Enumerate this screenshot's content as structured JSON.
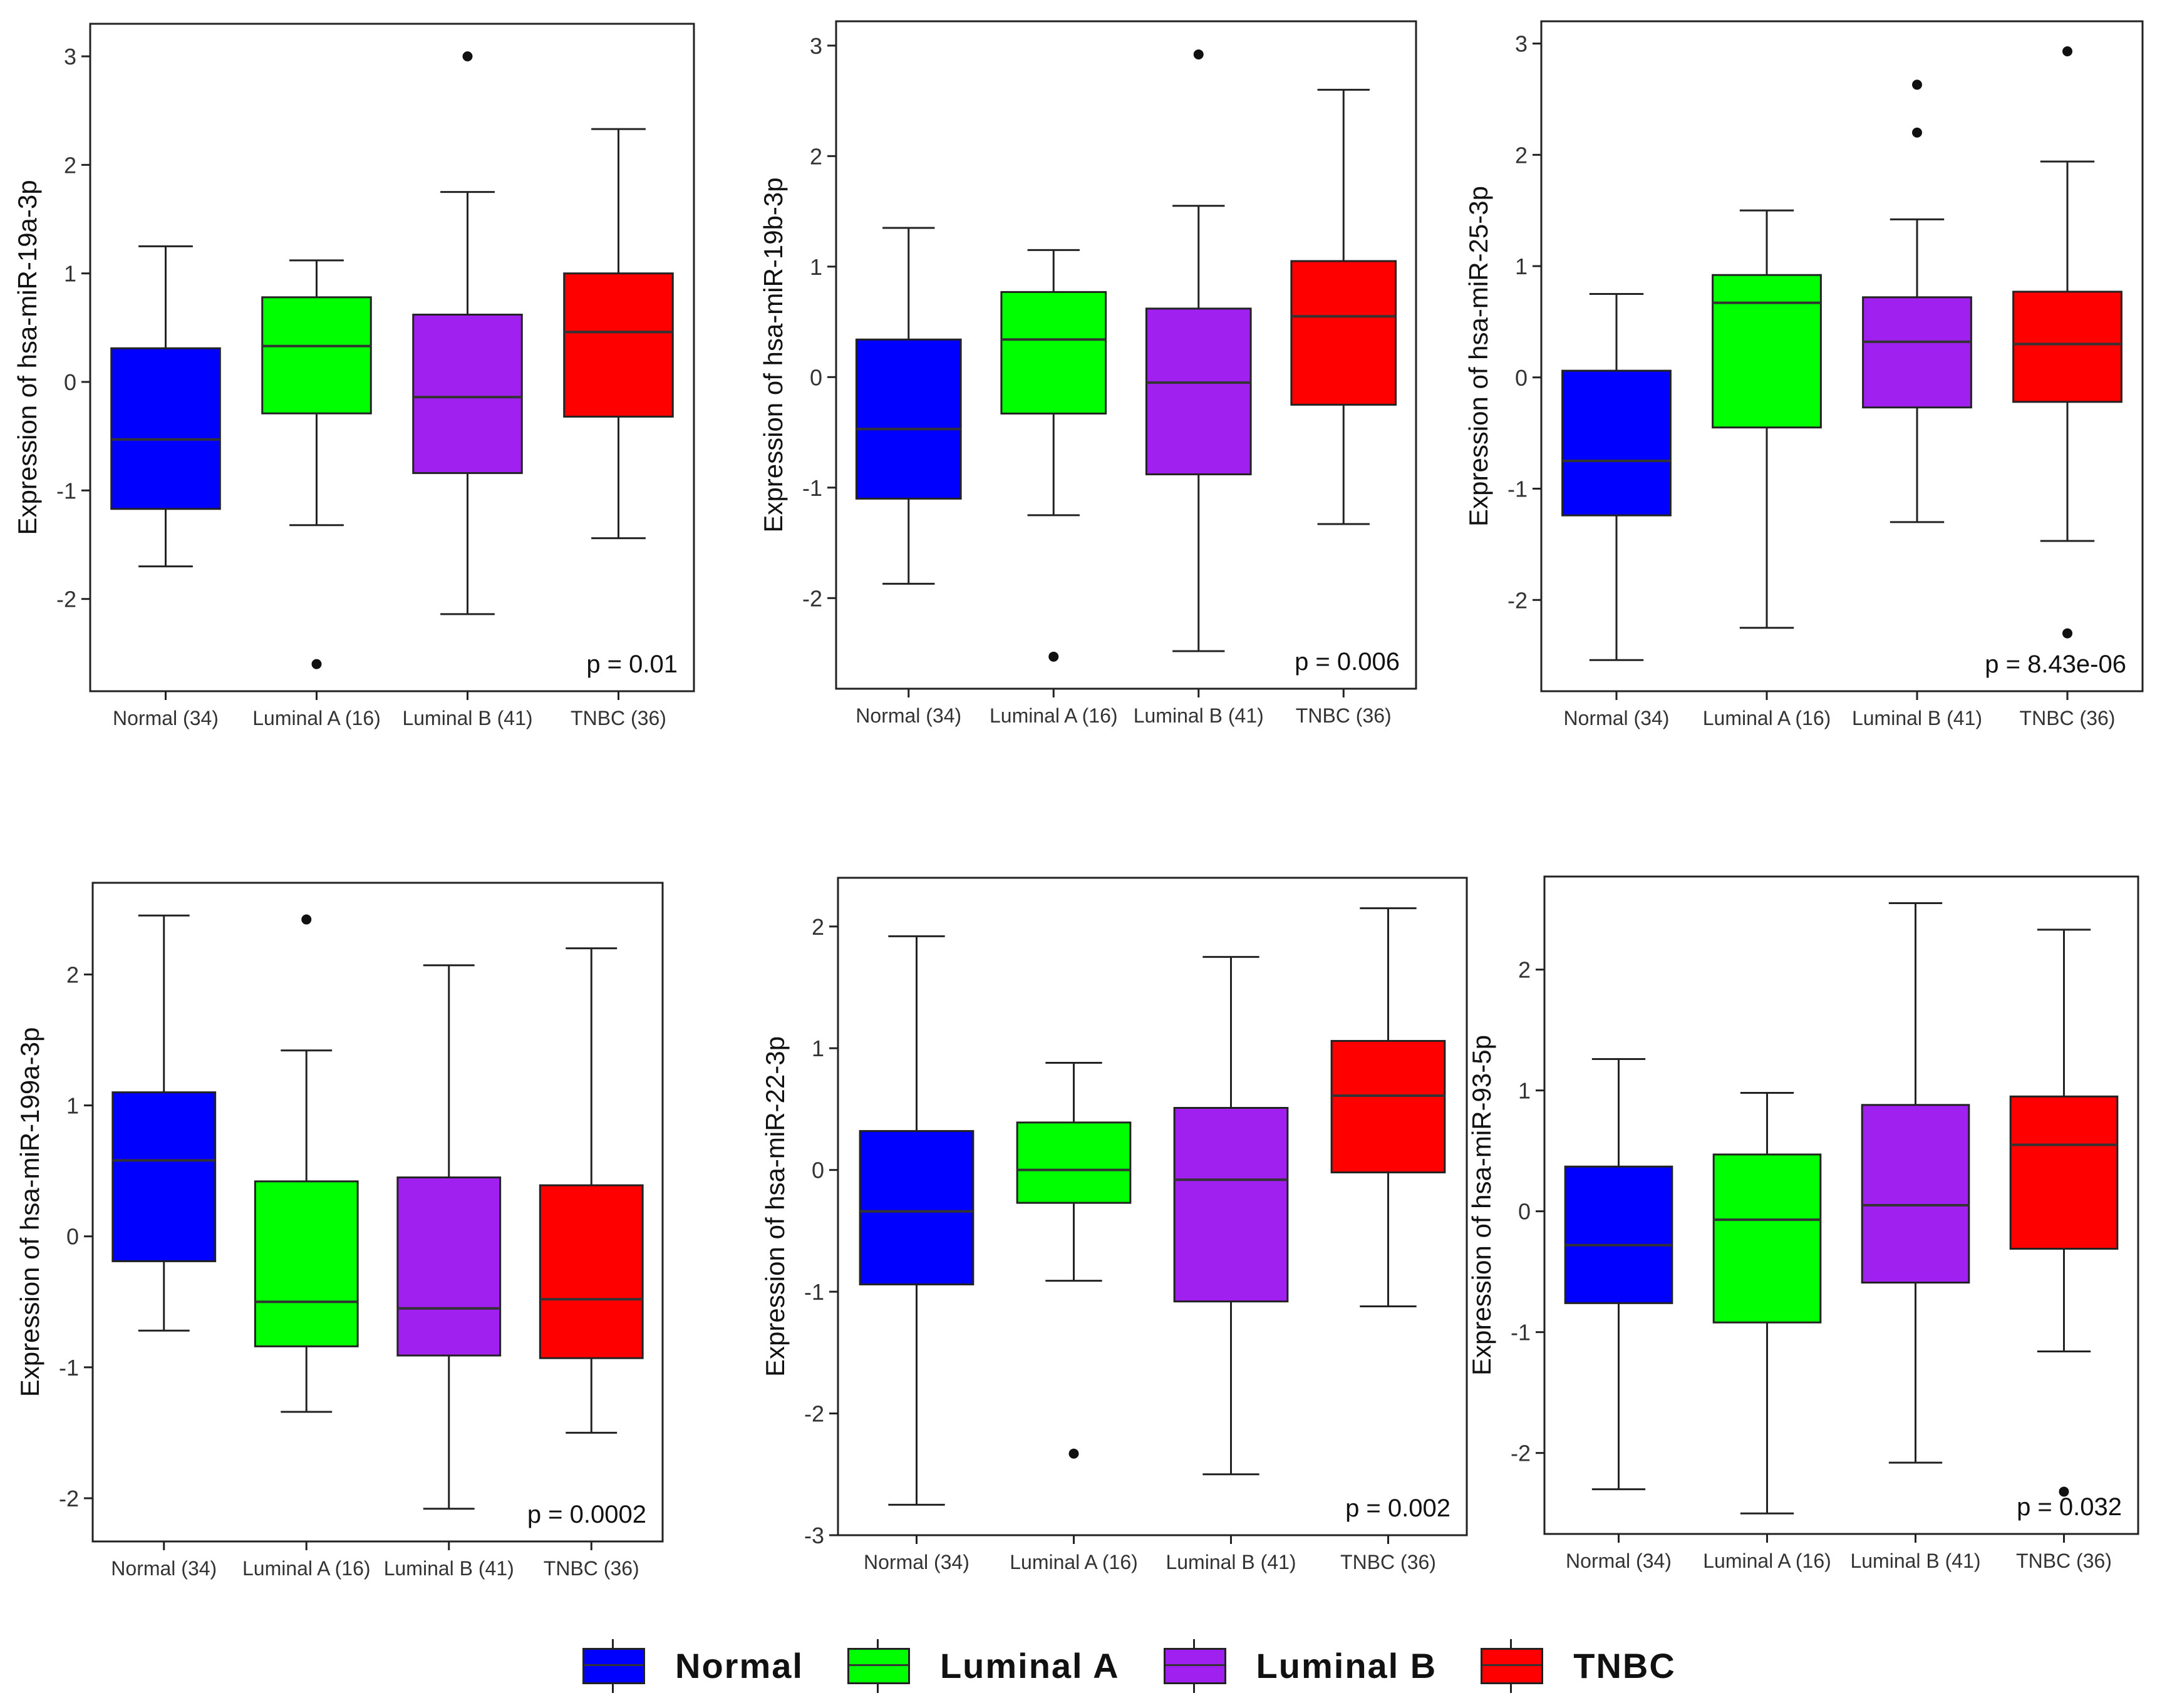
{
  "legend": {
    "items": [
      {
        "label": "Normal",
        "color": "#0000ff"
      },
      {
        "label": "Luminal A",
        "color": "#00ff00"
      },
      {
        "label": "Luminal B",
        "color": "#a020f0"
      },
      {
        "label": "TNBC",
        "color": "#ff0000"
      }
    ]
  },
  "chart_data": [
    {
      "type": "box",
      "ylabel": "Expression of hsa-miR-19a-3p",
      "categories": [
        "Normal (34)",
        "Luminal A (16)",
        "Luminal B (41)",
        "TNBC (36)"
      ],
      "colors": [
        "#0000ff",
        "#00ff00",
        "#a020f0",
        "#ff0000"
      ],
      "ylim": [
        -2.85,
        3.3
      ],
      "yticks": [
        -2,
        -1,
        0,
        1,
        2,
        3
      ],
      "ytick_labels": [
        "-2",
        "-1",
        "0",
        "1",
        "2",
        "3"
      ],
      "pvalue": "p = 0.01",
      "boxes": [
        {
          "min": -1.7,
          "q1": -1.17,
          "median": -0.53,
          "q3": 0.31,
          "max": 1.25,
          "outliers": []
        },
        {
          "min": -1.32,
          "q1": -0.29,
          "median": 0.33,
          "q3": 0.78,
          "max": 1.12,
          "outliers": [
            -2.6
          ]
        },
        {
          "min": -2.14,
          "q1": -0.84,
          "median": -0.14,
          "q3": 0.62,
          "max": 1.75,
          "outliers": [
            3.0
          ]
        },
        {
          "min": -1.44,
          "q1": -0.32,
          "median": 0.46,
          "q3": 1.0,
          "max": 2.33,
          "outliers": []
        }
      ]
    },
    {
      "type": "box",
      "ylabel": "Expression of hsa-miR-19b-3p",
      "categories": [
        "Normal (34)",
        "Luminal A (16)",
        "Luminal B (41)",
        "TNBC (36)"
      ],
      "colors": [
        "#0000ff",
        "#00ff00",
        "#a020f0",
        "#ff0000"
      ],
      "ylim": [
        -2.82,
        3.22
      ],
      "yticks": [
        -2,
        -1,
        0,
        1,
        2,
        3
      ],
      "ytick_labels": [
        "-2",
        "-1",
        "0",
        "1",
        "2",
        "3"
      ],
      "pvalue": "p = 0.006",
      "boxes": [
        {
          "min": -1.87,
          "q1": -1.1,
          "median": -0.47,
          "q3": 0.34,
          "max": 1.35,
          "outliers": []
        },
        {
          "min": -1.25,
          "q1": -0.33,
          "median": 0.34,
          "q3": 0.77,
          "max": 1.15,
          "outliers": [
            -2.53
          ]
        },
        {
          "min": -2.48,
          "q1": -0.88,
          "median": -0.05,
          "q3": 0.62,
          "max": 1.55,
          "outliers": [
            2.92
          ]
        },
        {
          "min": -1.33,
          "q1": -0.25,
          "median": 0.55,
          "q3": 1.05,
          "max": 2.6,
          "outliers": []
        }
      ]
    },
    {
      "type": "box",
      "ylabel": "Expression of hsa-miR-25-3p",
      "categories": [
        "Normal (34)",
        "Luminal A (16)",
        "Luminal B (41)",
        "TNBC (36)"
      ],
      "colors": [
        "#0000ff",
        "#00ff00",
        "#a020f0",
        "#ff0000"
      ],
      "ylim": [
        -2.82,
        3.2
      ],
      "yticks": [
        -2,
        -1,
        0,
        1,
        2,
        3
      ],
      "ytick_labels": [
        "-2",
        "-1",
        "0",
        "1",
        "2",
        "3"
      ],
      "pvalue": "p = 8.43e-06",
      "boxes": [
        {
          "min": -2.54,
          "q1": -1.24,
          "median": -0.75,
          "q3": 0.06,
          "max": 0.75,
          "outliers": []
        },
        {
          "min": -2.25,
          "q1": -0.45,
          "median": 0.67,
          "q3": 0.92,
          "max": 1.5,
          "outliers": []
        },
        {
          "min": -1.3,
          "q1": -0.27,
          "median": 0.32,
          "q3": 0.72,
          "max": 1.42,
          "outliers": [
            2.2,
            2.63
          ]
        },
        {
          "min": -1.47,
          "q1": -0.22,
          "median": 0.3,
          "q3": 0.77,
          "max": 1.94,
          "outliers": [
            -2.3,
            2.93
          ]
        }
      ]
    },
    {
      "type": "box",
      "ylabel": "Expression of hsa-miR-199a-3p",
      "categories": [
        "Normal (34)",
        "Luminal A (16)",
        "Luminal B (41)",
        "TNBC (36)"
      ],
      "colors": [
        "#0000ff",
        "#00ff00",
        "#a020f0",
        "#ff0000"
      ],
      "ylim": [
        -2.33,
        2.7
      ],
      "yticks": [
        -2,
        -1,
        0,
        1,
        2
      ],
      "ytick_labels": [
        "-2",
        "-1",
        "0",
        "1",
        "2"
      ],
      "pvalue": "p = 0.0002",
      "boxes": [
        {
          "min": -0.72,
          "q1": -0.19,
          "median": 0.58,
          "q3": 1.1,
          "max": 2.45,
          "outliers": []
        },
        {
          "min": -1.34,
          "q1": -0.84,
          "median": -0.5,
          "q3": 0.42,
          "max": 1.42,
          "outliers": [
            2.42
          ]
        },
        {
          "min": -2.08,
          "q1": -0.91,
          "median": -0.55,
          "q3": 0.45,
          "max": 2.07,
          "outliers": []
        },
        {
          "min": -1.5,
          "q1": -0.93,
          "median": -0.48,
          "q3": 0.39,
          "max": 2.2,
          "outliers": []
        }
      ]
    },
    {
      "type": "box",
      "ylabel": "Expression of hsa-miR-22-3p",
      "categories": [
        "Normal (34)",
        "Luminal A (16)",
        "Luminal B (41)",
        "TNBC (36)"
      ],
      "colors": [
        "#0000ff",
        "#00ff00",
        "#a020f0",
        "#ff0000"
      ],
      "ylim": [
        -3.0,
        2.4
      ],
      "yticks": [
        -3,
        -2,
        -1,
        0,
        1,
        2
      ],
      "ytick_labels": [
        "-3",
        "-2",
        "-1",
        "0",
        "1",
        "2"
      ],
      "pvalue": "p = 0.002",
      "boxes": [
        {
          "min": -2.75,
          "q1": -0.94,
          "median": -0.34,
          "q3": 0.32,
          "max": 1.92,
          "outliers": []
        },
        {
          "min": -0.91,
          "q1": -0.27,
          "median": 0.0,
          "q3": 0.39,
          "max": 0.88,
          "outliers": [
            -2.33
          ]
        },
        {
          "min": -2.5,
          "q1": -1.08,
          "median": -0.08,
          "q3": 0.51,
          "max": 1.75,
          "outliers": []
        },
        {
          "min": -1.12,
          "q1": -0.02,
          "median": 0.61,
          "q3": 1.06,
          "max": 2.15,
          "outliers": []
        }
      ]
    },
    {
      "type": "box",
      "ylabel": "Expression of hsa-miR-93-5p",
      "categories": [
        "Normal (34)",
        "Luminal A (16)",
        "Luminal B (41)",
        "TNBC (36)"
      ],
      "colors": [
        "#0000ff",
        "#00ff00",
        "#a020f0",
        "#ff0000"
      ],
      "ylim": [
        -2.67,
        2.77
      ],
      "yticks": [
        -2,
        -1,
        0,
        1,
        2
      ],
      "ytick_labels": [
        "-2",
        "-1",
        "0",
        "1",
        "2"
      ],
      "pvalue": "p = 0.032",
      "boxes": [
        {
          "min": -2.3,
          "q1": -0.76,
          "median": -0.28,
          "q3": 0.37,
          "max": 1.26,
          "outliers": []
        },
        {
          "min": -2.5,
          "q1": -0.92,
          "median": -0.07,
          "q3": 0.47,
          "max": 0.98,
          "outliers": []
        },
        {
          "min": -2.08,
          "q1": -0.59,
          "median": 0.05,
          "q3": 0.88,
          "max": 2.55,
          "outliers": []
        },
        {
          "min": -1.16,
          "q1": -0.31,
          "median": 0.55,
          "q3": 0.95,
          "max": 2.33,
          "outliers": [
            -2.32
          ]
        }
      ]
    }
  ]
}
